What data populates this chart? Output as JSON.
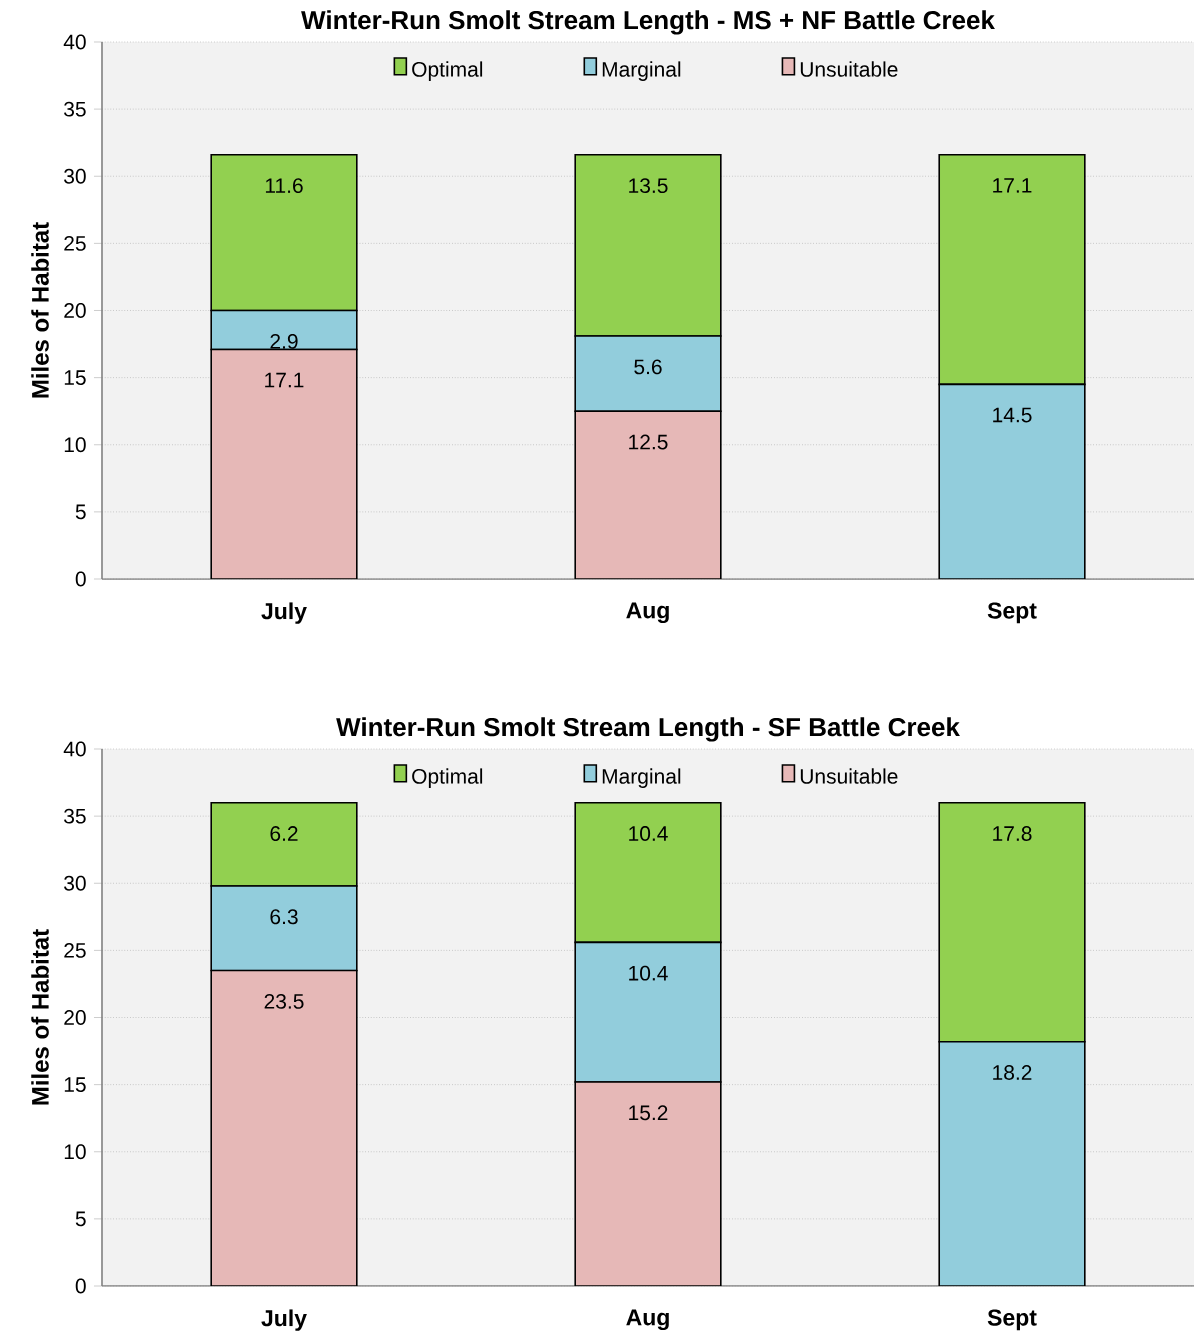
{
  "chart_data": [
    {
      "type": "bar",
      "stacked": true,
      "title": "Winter-Run Smolt Stream Length -  MS + NF Battle Creek",
      "ylabel": "Miles of Habitat",
      "categories": [
        "July",
        "Aug",
        "Sept"
      ],
      "ylim": [
        0,
        40
      ],
      "yticks": [
        0,
        5,
        10,
        15,
        20,
        25,
        30,
        35,
        40
      ],
      "grid": "y",
      "legend": "top",
      "series": [
        {
          "name": "Unsuitable",
          "color": "#e6b8b7",
          "values": [
            17.1,
            12.5,
            0
          ],
          "value_labels": [
            "17.1",
            "12.5",
            null
          ]
        },
        {
          "name": "Marginal",
          "color": "#92cddc",
          "values": [
            2.9,
            5.6,
            14.5
          ],
          "value_labels": [
            "2.9",
            "5.6",
            "14.5"
          ]
        },
        {
          "name": "Optimal",
          "color": "#92d050",
          "values": [
            11.6,
            13.5,
            17.1
          ],
          "value_labels": [
            "11.6",
            "13.5",
            "17.1"
          ]
        }
      ]
    },
    {
      "type": "bar",
      "stacked": true,
      "title": "Winter-Run Smolt Stream Length - SF Battle Creek",
      "ylabel": "Miles of Habitat",
      "categories": [
        "July",
        "Aug",
        "Sept"
      ],
      "ylim": [
        0,
        40
      ],
      "yticks": [
        0,
        5,
        10,
        15,
        20,
        25,
        30,
        35,
        40
      ],
      "grid": "y",
      "legend": "top",
      "series": [
        {
          "name": "Unsuitable",
          "color": "#e6b8b7",
          "values": [
            23.5,
            15.2,
            0
          ],
          "value_labels": [
            "23.5",
            "15.2",
            null
          ]
        },
        {
          "name": "Marginal",
          "color": "#92cddc",
          "values": [
            6.3,
            10.4,
            18.2
          ],
          "value_labels": [
            "6.3",
            "10.4",
            "18.2"
          ]
        },
        {
          "name": "Optimal",
          "color": "#92d050",
          "values": [
            6.2,
            10.4,
            17.8
          ],
          "value_labels": [
            "6.2",
            "10.4",
            "17.8"
          ]
        }
      ]
    }
  ]
}
